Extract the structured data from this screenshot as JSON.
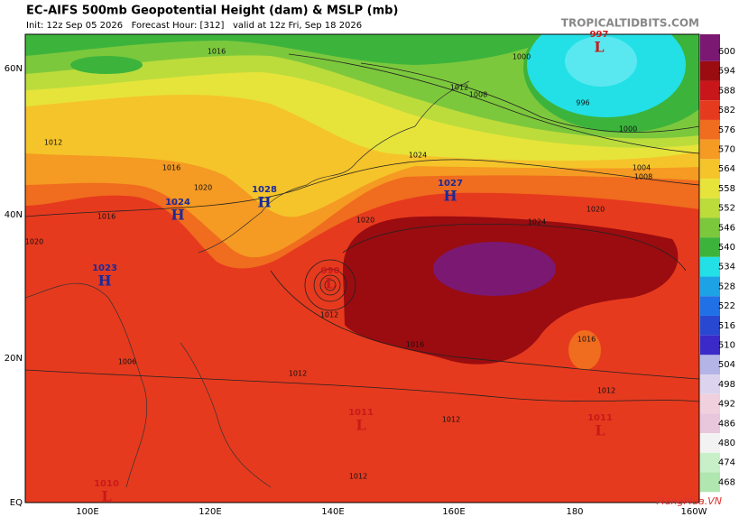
{
  "header": {
    "title": "EC-AIFS 500mb Geopotential Height (dam) & MSLP (mb)",
    "subtitle": "Init: 12z Sep 05 2026   Forecast Hour: [312]   valid at 12z Fri, Sep 18 2026",
    "credit": "TROPICALTIDBITS.COM"
  },
  "latitude_labels": [
    "60N",
    "40N",
    "20N",
    "EQ"
  ],
  "longitude_labels": [
    "100E",
    "120E",
    "140E",
    "160E",
    "180",
    "160W"
  ],
  "colorbar": {
    "values": [
      600,
      594,
      588,
      582,
      576,
      570,
      564,
      558,
      552,
      546,
      540,
      534,
      528,
      522,
      516,
      510,
      504,
      498,
      492,
      486,
      480,
      474,
      468
    ],
    "colors": [
      "#7b1872",
      "#9a0c10",
      "#c8161a",
      "#e63a1e",
      "#f06c1e",
      "#f59a22",
      "#f5c42a",
      "#e6e43a",
      "#bcdc3c",
      "#7cc83c",
      "#3cb43c",
      "#22e0e6",
      "#1ea2e6",
      "#2070e6",
      "#2848d2",
      "#3c2ac8",
      "#b4b4e6",
      "#dcd4ee",
      "#f0d0dc",
      "#e8c6dc",
      "#f2f2f2",
      "#c8f0c8",
      "#b0e6b0"
    ]
  },
  "pressure_centers": [
    {
      "symbol": "H",
      "value": 1027
    },
    {
      "symbol": "H",
      "value": 1024
    },
    {
      "symbol": "H",
      "value": 1028
    },
    {
      "symbol": "H",
      "value": 1023
    },
    {
      "symbol": "L",
      "value": 997
    },
    {
      "symbol": "L",
      "value": 990
    },
    {
      "symbol": "L",
      "value": 1011
    },
    {
      "symbol": "L",
      "value": 1011
    },
    {
      "symbol": "L",
      "value": 1010
    }
  ],
  "isobar_labels": [
    1016,
    1016,
    1020,
    1024,
    1020,
    1020,
    1016,
    1016,
    1012,
    1012,
    1012,
    1012,
    1012,
    1000,
    996,
    1000,
    1004,
    1008,
    1008,
    1012,
    1012,
    1016,
    1020,
    1006,
    1024
  ],
  "watermark": "MangMua.VN"
}
